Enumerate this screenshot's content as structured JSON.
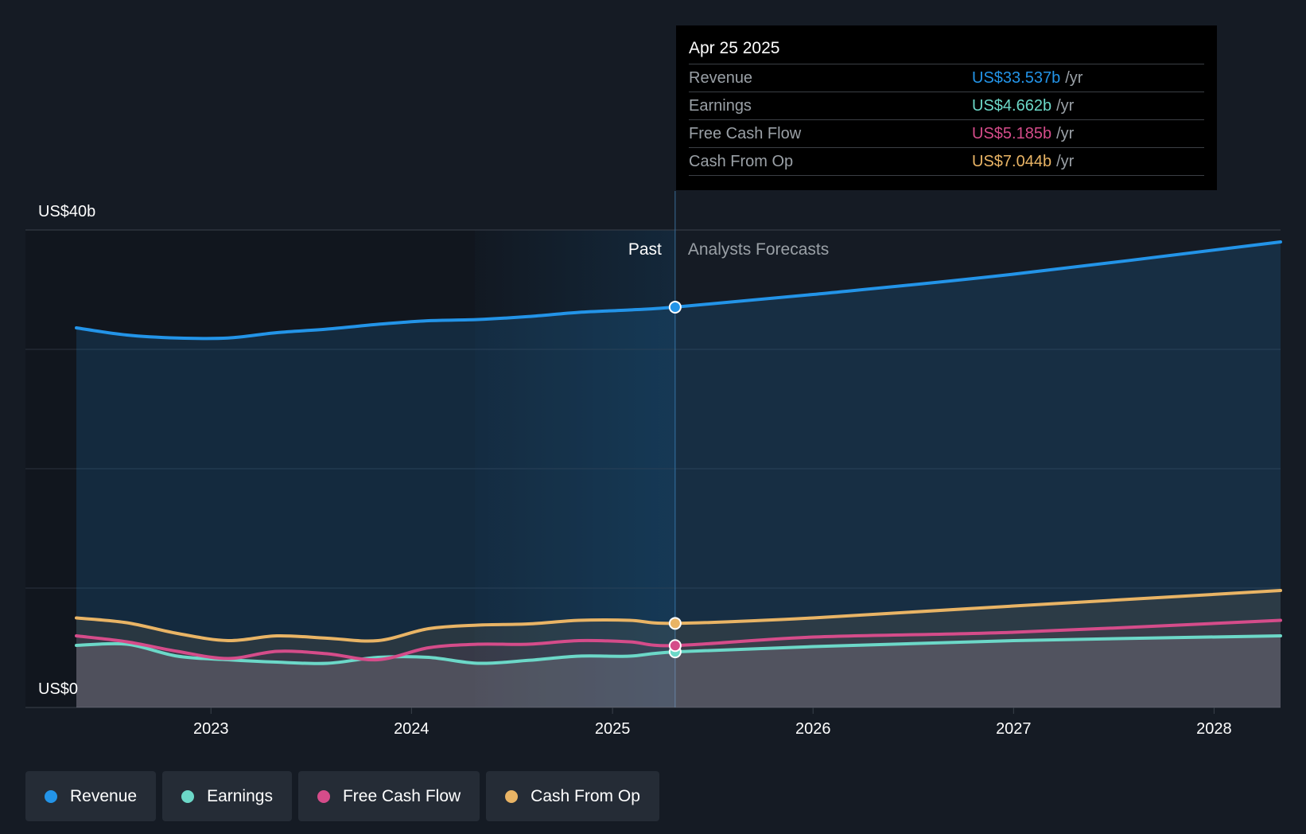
{
  "tooltip": {
    "date": "Apr 25 2025",
    "unit": "/yr",
    "rows": [
      {
        "label": "Revenue",
        "value": "US$33.537b"
      },
      {
        "label": "Earnings",
        "value": "US$4.662b"
      },
      {
        "label": "Free Cash Flow",
        "value": "US$5.185b"
      },
      {
        "label": "Cash From Op",
        "value": "US$7.044b"
      }
    ]
  },
  "legend": {
    "items": [
      {
        "label": "Revenue"
      },
      {
        "label": "Earnings"
      },
      {
        "label": "Free Cash Flow"
      },
      {
        "label": "Cash From Op"
      }
    ]
  },
  "colors": {
    "background": "#151b24",
    "revenue": "#2394e8",
    "earnings": "#6cd8c8",
    "free_cash_flow": "#d54c8a",
    "cash_from_op": "#e9b465",
    "tooltip_bg": "#000000",
    "legend_bg": "#252c36"
  },
  "chart_data": {
    "type": "line",
    "title": "",
    "xlabel": "",
    "ylabel": "",
    "y_tick_labels": {
      "top": "US$40b",
      "bottom": "US$0"
    },
    "ylim": [
      0,
      40
    ],
    "xlim": [
      "2022-05-01",
      "2028-05-01"
    ],
    "x_tick_labels": [
      "2023",
      "2024",
      "2025",
      "2026",
      "2027",
      "2028"
    ],
    "grid": true,
    "legend_position": "bottom-left",
    "past_label": "Past",
    "forecast_label": "Analysts Forecasts",
    "divider_date": "2025-04-25",
    "highlight_start_date": "2024-04-25",
    "series": [
      {
        "name": "Revenue",
        "color": "#2394e8",
        "points": [
          [
            "2022-05-01",
            31.8
          ],
          [
            "2022-08-01",
            31.2
          ],
          [
            "2022-11-01",
            30.95
          ],
          [
            "2023-02-01",
            30.95
          ],
          [
            "2023-05-01",
            31.4
          ],
          [
            "2023-08-01",
            31.7
          ],
          [
            "2023-11-01",
            32.1
          ],
          [
            "2024-02-01",
            32.4
          ],
          [
            "2024-05-01",
            32.5
          ],
          [
            "2024-08-01",
            32.75
          ],
          [
            "2024-11-01",
            33.1
          ],
          [
            "2025-02-01",
            33.3
          ],
          [
            "2025-04-25",
            33.537
          ],
          [
            "2026-01-01",
            34.6
          ],
          [
            "2027-01-01",
            36.3
          ],
          [
            "2028-05-01",
            39.0
          ]
        ]
      },
      {
        "name": "Earnings",
        "color": "#6cd8c8",
        "points": [
          [
            "2022-05-01",
            5.2
          ],
          [
            "2022-08-01",
            5.3
          ],
          [
            "2022-11-01",
            4.3
          ],
          [
            "2023-02-01",
            4.0
          ],
          [
            "2023-05-01",
            3.8
          ],
          [
            "2023-08-01",
            3.7
          ],
          [
            "2023-11-01",
            4.2
          ],
          [
            "2024-02-01",
            4.2
          ],
          [
            "2024-05-01",
            3.7
          ],
          [
            "2024-08-01",
            3.95
          ],
          [
            "2024-11-01",
            4.3
          ],
          [
            "2025-02-01",
            4.3
          ],
          [
            "2025-04-25",
            4.662
          ],
          [
            "2026-01-01",
            5.1
          ],
          [
            "2027-01-01",
            5.6
          ],
          [
            "2028-05-01",
            6.0
          ]
        ]
      },
      {
        "name": "Free Cash Flow",
        "color": "#d54c8a",
        "points": [
          [
            "2022-05-01",
            6.0
          ],
          [
            "2022-08-01",
            5.5
          ],
          [
            "2022-11-01",
            4.7
          ],
          [
            "2023-02-01",
            4.1
          ],
          [
            "2023-05-01",
            4.7
          ],
          [
            "2023-08-01",
            4.5
          ],
          [
            "2023-11-01",
            4.0
          ],
          [
            "2024-02-01",
            5.0
          ],
          [
            "2024-05-01",
            5.3
          ],
          [
            "2024-08-01",
            5.3
          ],
          [
            "2024-11-01",
            5.6
          ],
          [
            "2025-02-01",
            5.5
          ],
          [
            "2025-04-25",
            5.185
          ],
          [
            "2026-01-01",
            5.9
          ],
          [
            "2027-01-01",
            6.3
          ],
          [
            "2028-05-01",
            7.3
          ]
        ]
      },
      {
        "name": "Cash From Op",
        "color": "#e9b465",
        "points": [
          [
            "2022-05-01",
            7.5
          ],
          [
            "2022-08-01",
            7.1
          ],
          [
            "2022-11-01",
            6.2
          ],
          [
            "2023-02-01",
            5.6
          ],
          [
            "2023-05-01",
            6.0
          ],
          [
            "2023-08-01",
            5.8
          ],
          [
            "2023-11-01",
            5.6
          ],
          [
            "2024-02-01",
            6.6
          ],
          [
            "2024-05-01",
            6.9
          ],
          [
            "2024-08-01",
            7.0
          ],
          [
            "2024-11-01",
            7.3
          ],
          [
            "2025-02-01",
            7.3
          ],
          [
            "2025-04-25",
            7.044
          ],
          [
            "2026-01-01",
            7.5
          ],
          [
            "2027-01-01",
            8.5
          ],
          [
            "2028-05-01",
            9.8
          ]
        ]
      }
    ]
  }
}
